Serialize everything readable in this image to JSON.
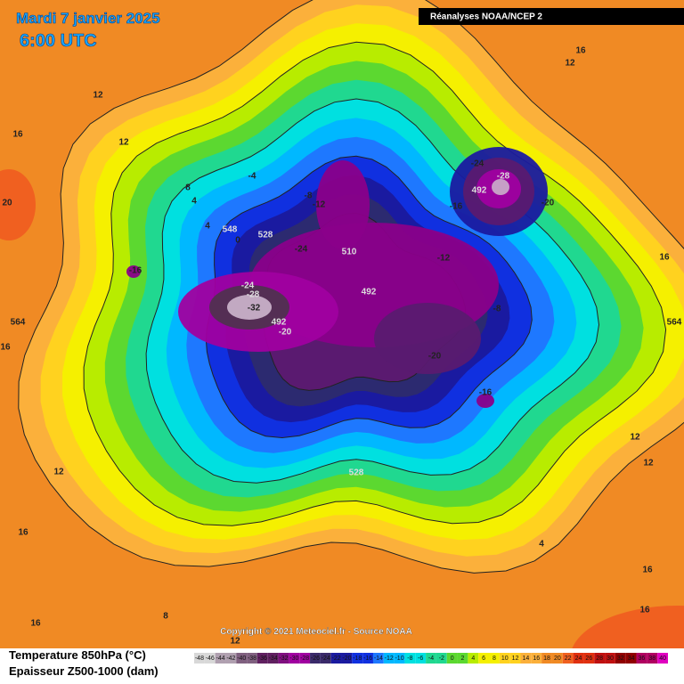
{
  "header": {
    "date": "Mardi 7 janvier 2025",
    "time": "6:00 UTC",
    "source": "Réanalyses NOAA/NCEP 2"
  },
  "footer": {
    "copyright": "Copyright © 2021 Meteociel.fr - Source NOAA",
    "legend_title_1": "Temperature 850hPa (°C)",
    "legend_title_2": "Epaisseur Z500-1000 (dam)"
  },
  "scale": {
    "labels": [
      "-48",
      "-46",
      "-44",
      "-42",
      "-40",
      "-38",
      "-36",
      "-34",
      "-32",
      "-30",
      "-28",
      "-26",
      "-24",
      "-22",
      "-20",
      "-18",
      "-16",
      "-14",
      "-12",
      "-10",
      "-8",
      "-6",
      "-4",
      "-2",
      "0",
      "2",
      "4",
      "6",
      "8",
      "10",
      "12",
      "14",
      "16",
      "18",
      "20",
      "22",
      "24",
      "26",
      "28",
      "30",
      "32",
      "34",
      "36",
      "38",
      "40"
    ]
  },
  "map": {
    "labels": [
      "-24",
      "-28",
      "492",
      "-16",
      "-20",
      "-8",
      "-12",
      "-16",
      "-24",
      "-28",
      "-32",
      "492",
      "-20",
      "-24",
      "510",
      "492",
      "-12",
      "-8",
      "-20",
      "-16",
      "528",
      "548",
      "528",
      "-4",
      "4",
      "0",
      "4",
      "8",
      "12",
      "12",
      "16",
      "20",
      "16",
      "12",
      "16",
      "564",
      "16",
      "564",
      "12",
      "12",
      "16",
      "16",
      "4",
      "12",
      "16",
      "16",
      "8",
      "12"
    ]
  }
}
